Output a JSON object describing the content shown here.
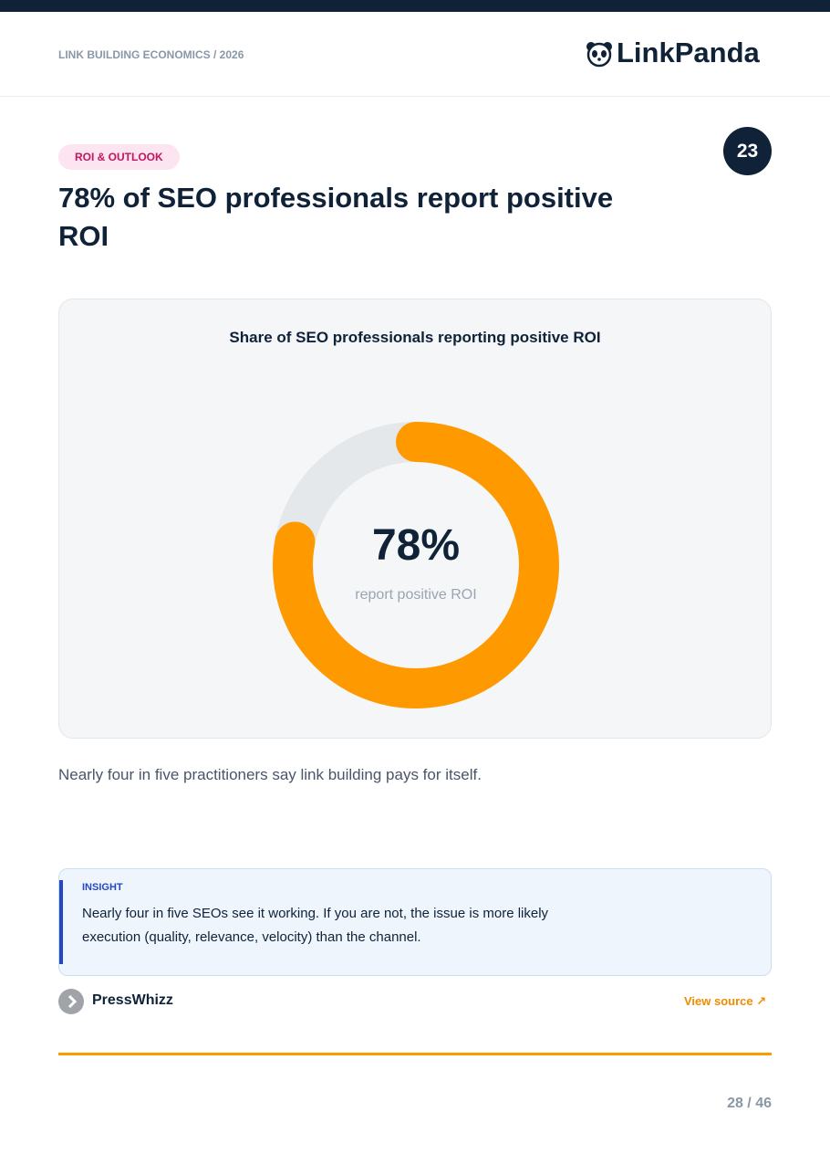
{
  "header": {
    "label": "LINK BUILDING ECONOMICS / 2026",
    "brand": "LinkPanda"
  },
  "tag": "ROI & OUTLOOK",
  "badge": "23",
  "title": "78% of SEO professionals report positive ROI",
  "chart_data": {
    "type": "donut",
    "title": "Share of SEO professionals reporting positive ROI",
    "values": [
      78
    ],
    "value_labels": [
      "78%"
    ],
    "center_label": "report positive ROI",
    "color": "#ff9900",
    "track_color": "#e4e8eb"
  },
  "caption": "Nearly four in five practitioners say link building pays for itself.",
  "insight": {
    "label": "INSIGHT",
    "text": "Nearly four in five SEOs see it working. If you are not, the issue is more likely execution (quality, relevance, velocity) than the channel."
  },
  "source": {
    "name": "PressWhizz",
    "link": "View source"
  },
  "page": "28 / 46"
}
